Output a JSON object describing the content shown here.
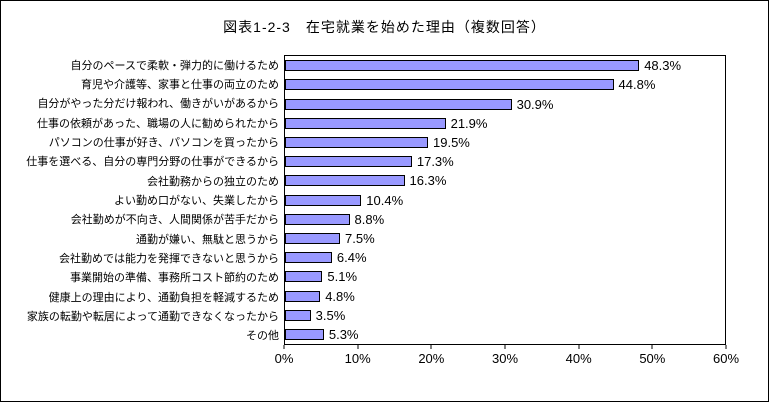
{
  "chart_data": {
    "type": "bar",
    "orientation": "horizontal",
    "title": "図表1-2-3　在宅就業を始めた理由（複数回答）",
    "categories": [
      "自分のペースで柔軟・弾力的に働けるため",
      "育児や介護等、家事と仕事の両立のため",
      "自分がやった分だけ報われ、働きがいがあるから",
      "仕事の依頼があった、職場の人に勧められたから",
      "パソコンの仕事が好き、パソコンを買ったから",
      "仕事を選べる、自分の専門分野の仕事ができるから",
      "会社勤務からの独立のため",
      "よい勤め口がない、失業したから",
      "会社勤めが不向き、人間関係が苦手だから",
      "通勤が嫌い、無駄と思うから",
      "会社勤めでは能力を発揮できないと思うから",
      "事業開始の準備、事務所コスト節約のため",
      "健康上の理由により、通勤負担を軽減するため",
      "家族の転勤や転居によって通勤できなくなったから",
      "その他"
    ],
    "values": [
      48.3,
      44.8,
      30.9,
      21.9,
      19.5,
      17.3,
      16.3,
      10.4,
      8.8,
      7.5,
      6.4,
      5.1,
      4.8,
      3.5,
      5.3
    ],
    "value_labels": [
      "48.3%",
      "44.8%",
      "30.9%",
      "21.9%",
      "19.5%",
      "17.3%",
      "16.3%",
      "10.4%",
      "8.8%",
      "7.5%",
      "6.4%",
      "5.1%",
      "4.8%",
      "3.5%",
      "5.3%"
    ],
    "x_ticks": [
      "0%",
      "10%",
      "20%",
      "30%",
      "40%",
      "50%",
      "60%"
    ],
    "xlim": [
      0,
      60
    ],
    "grid": false,
    "legend": "none",
    "bar_color": "#9999FF",
    "bar_border_color": "#000000"
  }
}
